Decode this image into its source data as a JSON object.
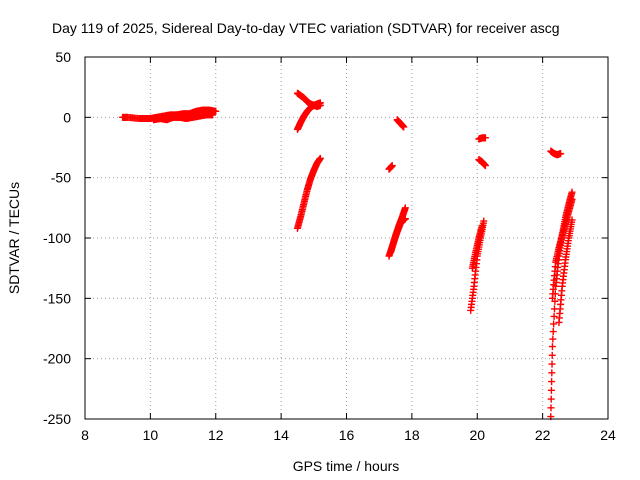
{
  "chart_data": {
    "type": "scatter",
    "title": "Day 119 of 2025, Sidereal Day-to-day VTEC variation (SDTVAR) for receiver ascg",
    "xlabel": "GPS time / hours",
    "ylabel": "SDTVAR / TECUs",
    "xlim": [
      8,
      24
    ],
    "ylim": [
      -250,
      50
    ],
    "xticks": [
      "8",
      "10",
      "12",
      "14",
      "16",
      "18",
      "20",
      "22",
      "24"
    ],
    "yticks": [
      "50",
      "0",
      "-50",
      "-100",
      "-150",
      "-200",
      "-250"
    ],
    "grid": true,
    "marker": "plus",
    "series": [
      {
        "name": "SDTVAR",
        "color": "#ff0000",
        "segments": [
          {
            "x": [
              9.15,
              9.3,
              9.65,
              9.8,
              10.0,
              10.2,
              10.4,
              10.6,
              10.8,
              11.0,
              11.2,
              11.4,
              11.6,
              11.8,
              12.0
            ],
            "y": [
              0,
              0,
              -1,
              -1,
              -1,
              0,
              1,
              2,
              2,
              3,
              3,
              5,
              6,
              6,
              5
            ]
          },
          {
            "x": [
              10.1,
              10.3,
              10.5,
              10.7,
              10.9,
              11.1,
              11.3,
              11.5,
              11.7,
              11.9
            ],
            "y": [
              -2,
              -1,
              -2,
              0,
              0,
              -1,
              0,
              1,
              2,
              2
            ]
          },
          {
            "x": [
              14.5,
              14.6,
              14.7,
              14.8,
              14.9,
              15.0,
              15.1,
              15.2
            ],
            "y": [
              -92,
              -82,
              -71,
              -60,
              -51,
              -44,
              -38,
              -34
            ]
          },
          {
            "x": [
              14.5,
              14.6,
              14.7,
              14.8,
              14.9,
              15.0,
              15.1,
              15.2
            ],
            "y": [
              -10,
              -4,
              1,
              5,
              8,
              10,
              11,
              12
            ]
          },
          {
            "x": [
              14.5,
              14.6,
              14.7,
              14.8,
              14.9,
              15.0,
              15.1,
              15.2
            ],
            "y": [
              20,
              18,
              16,
              13,
              11,
              10,
              9,
              10
            ]
          },
          {
            "x": [
              17.3,
              17.4,
              17.5,
              17.6,
              17.7,
              17.8
            ],
            "y": [
              -115,
              -107,
              -98,
              -90,
              -83,
              -75
            ]
          },
          {
            "x": [
              17.35,
              17.45,
              17.55,
              17.65,
              17.75,
              17.8
            ],
            "y": [
              -112,
              -103,
              -95,
              -88,
              -85,
              -84
            ]
          },
          {
            "x": [
              17.3,
              17.4
            ],
            "y": [
              -43,
              -40
            ]
          },
          {
            "x": [
              17.55,
              17.65,
              17.75
            ],
            "y": [
              -2,
              -5,
              -8
            ]
          },
          {
            "x": [
              19.8,
              19.9,
              20.0,
              20.1,
              20.2
            ],
            "y": [
              -160,
              -140,
              -115,
              -100,
              -86
            ]
          },
          {
            "x": [
              19.85,
              19.95,
              20.05,
              20.15
            ],
            "y": [
              -125,
              -112,
              -100,
              -90
            ]
          },
          {
            "x": [
              20.05,
              20.15,
              20.25
            ],
            "y": [
              -35,
              -37,
              -40
            ]
          },
          {
            "x": [
              20.05,
              20.15,
              20.25
            ],
            "y": [
              -18,
              -17,
              -17
            ]
          },
          {
            "x": [
              22.25,
              22.3,
              22.4,
              22.5,
              22.6,
              22.7,
              22.8,
              22.9
            ],
            "y": [
              -248,
              -190,
              -140,
              -115,
              -97,
              -83,
              -72,
              -62
            ]
          },
          {
            "x": [
              22.3,
              22.4,
              22.5,
              22.6,
              22.7,
              22.8,
              22.9
            ],
            "y": [
              -150,
              -120,
              -108,
              -98,
              -88,
              -78,
              -68
            ]
          },
          {
            "x": [
              22.5,
              22.6,
              22.7,
              22.8,
              22.9
            ],
            "y": [
              -170,
              -140,
              -118,
              -100,
              -85
            ]
          },
          {
            "x": [
              22.25,
              22.35,
              22.45,
              22.55
            ],
            "y": [
              -28,
              -30,
              -31,
              -30
            ]
          }
        ]
      }
    ]
  }
}
